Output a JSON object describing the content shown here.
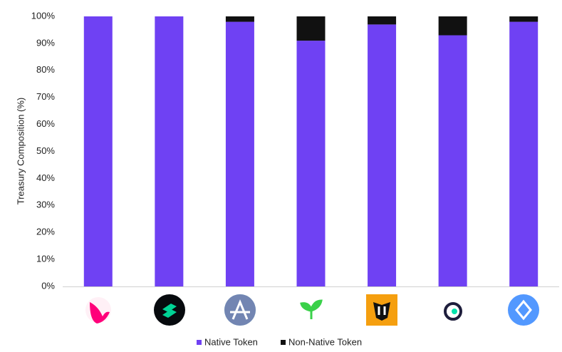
{
  "chart_data": {
    "type": "stacked_bar",
    "y_label": "Treasury Composition (%)",
    "categories": [
      null,
      null,
      null,
      null,
      null,
      null,
      null
    ],
    "series": [
      {
        "name": "Native Token",
        "color": "#6f41f3",
        "values": [
          100,
          100,
          98,
          91,
          97,
          93,
          98
        ]
      },
      {
        "name": "Non-Native Token",
        "color": "#111111",
        "values": [
          0,
          0,
          2,
          9,
          3,
          7,
          2
        ]
      }
    ],
    "ylim": [
      0,
      100
    ],
    "yticks": [
      {
        "value": 0,
        "label": "0%"
      },
      {
        "value": 10,
        "label": "10%"
      },
      {
        "value": 20,
        "label": "20%"
      },
      {
        "value": 30,
        "label": "30%"
      },
      {
        "value": 40,
        "label": "40%"
      },
      {
        "value": 50,
        "label": "50%"
      },
      {
        "value": 60,
        "label": "60%"
      },
      {
        "value": 70,
        "label": "70%"
      },
      {
        "value": 80,
        "label": "80%"
      },
      {
        "value": 90,
        "label": "90%"
      },
      {
        "value": 100,
        "label": "100%"
      }
    ],
    "grid": false
  }
}
